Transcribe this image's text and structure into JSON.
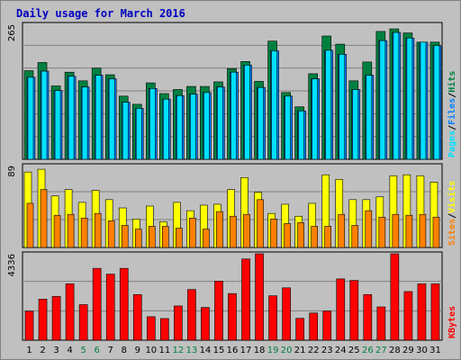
{
  "chart_data": {
    "type": "bar",
    "title": "Daily usage for March 2016",
    "days": [
      "1",
      "2",
      "3",
      "4",
      "5",
      "6",
      "7",
      "8",
      "9",
      "10",
      "11",
      "12",
      "13",
      "14",
      "15",
      "16",
      "17",
      "18",
      "19",
      "20",
      "21",
      "22",
      "23",
      "24",
      "25",
      "26",
      "27",
      "28",
      "29",
      "30",
      "31"
    ],
    "weekend_days": [
      "5",
      "6",
      "12",
      "13",
      "19",
      "20",
      "26",
      "27"
    ],
    "panels": [
      {
        "id": "top",
        "ymax": 265,
        "ymax_label": "265",
        "legend": [
          "Pages",
          "Files",
          "Hits"
        ],
        "series": [
          {
            "name": "Hits",
            "color": "#008040",
            "values": [
              174,
              190,
              144,
              171,
              154,
              179,
              166,
              124,
              108,
              150,
              129,
              137,
              143,
              143,
              152,
              178,
              192,
              153,
              232,
              131,
              103,
              168,
              242,
              226,
              154,
              191,
              251,
              256,
              248,
              230,
              230
            ]
          },
          {
            "name": "Files",
            "color": "#0080ff",
            "values": [
              161,
              173,
              135,
              163,
              142,
              165,
              158,
              112,
              100,
              139,
              118,
              125,
              128,
              131,
              142,
              171,
              185,
              141,
              213,
              124,
              95,
              158,
              214,
              206,
              137,
              165,
              233,
              249,
              238,
              230,
              223
            ]
          },
          {
            "name": "Pages",
            "color": "#00e0ff",
            "values": [
              161,
              173,
              135,
              163,
              142,
              165,
              158,
              112,
              100,
              139,
              118,
              125,
              128,
              131,
              142,
              171,
              185,
              141,
              213,
              124,
              95,
              158,
              214,
              206,
              137,
              165,
              233,
              249,
              238,
              230,
              223
            ]
          }
        ]
      },
      {
        "id": "mid",
        "ymax": 89,
        "ymax_label": "89",
        "legend": [
          "Sites",
          "Visits"
        ],
        "series": [
          {
            "name": "Visits",
            "color": "#ffff00",
            "values": [
              82,
              85,
              56,
              63,
              49,
              62,
              52,
              43,
              31,
              45,
              28,
              49,
              40,
              46,
              47,
              63,
              76,
              60,
              37,
              47,
              34,
              48,
              79,
              74,
              52,
              52,
              55,
              78,
              79,
              78,
              71
            ]
          },
          {
            "name": "Sites",
            "color": "#ff8000",
            "values": [
              48,
              63,
              35,
              36,
              32,
              37,
              29,
              24,
              20,
              23,
              23,
              21,
              32,
              20,
              39,
              34,
              36,
              52,
              31,
              26,
              27,
              23,
              23,
              36,
              24,
              40,
              33,
              36,
              35,
              36,
              33
            ]
          }
        ]
      },
      {
        "id": "bot",
        "ymax": 4336,
        "ymax_label": "4336",
        "legend": [
          "KBytes"
        ],
        "series": [
          {
            "name": "KBytes",
            "color": "#ff0000",
            "values": [
              1453,
              2059,
              2196,
              2829,
              1785,
              3605,
              3315,
              3605,
              2291,
              1178,
              1086,
              1719,
              2545,
              1644,
              2964,
              2341,
              4075,
              4336,
              2230,
              2628,
              1096,
              1364,
              1462,
              3075,
              2998,
              2291,
              1671,
              4336,
              2441,
              2826,
              2826
            ]
          }
        ]
      }
    ],
    "colors": {
      "background": "#c0c0c0",
      "plot_background": "#c0c0c0",
      "title": "#0000c0",
      "weekend_label": "#008040",
      "weekday_label": "#000000",
      "grid": "#808080",
      "separator": "#000000"
    }
  }
}
